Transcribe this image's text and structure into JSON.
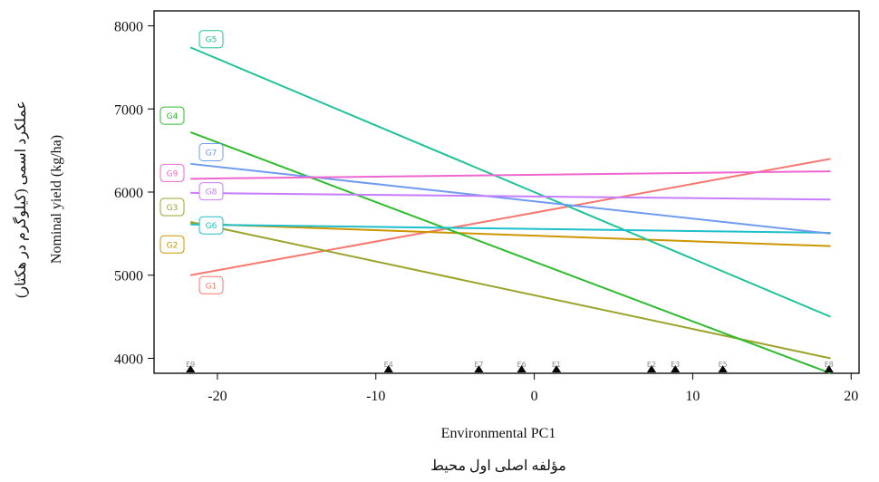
{
  "chart_data": {
    "type": "line",
    "title": "",
    "xlabel": "Environmental PC1",
    "xlabel_secondary": "مؤلفه اصلی اول محیط",
    "ylabel": "Nominal yield (kg/ha)",
    "ylabel_secondary": "عملکرد اسمی (کیلوگرم در هکتار)",
    "xlim": [
      -24,
      20.5
    ],
    "ylim": [
      3820,
      8180
    ],
    "xticks": [
      -20,
      -10,
      0,
      10,
      20
    ],
    "xtick_labels": [
      "-20",
      "-10",
      "0",
      "10",
      "20"
    ],
    "yticks": [
      4000,
      5000,
      6000,
      7000,
      8000
    ],
    "ytick_labels": [
      "4000",
      "5000",
      "6000",
      "7000",
      "8000"
    ],
    "grid": false,
    "legend": "none",
    "series": [
      {
        "name": "G1",
        "color": "#f8766d",
        "x": [
          -21.7,
          18.7
        ],
        "y": [
          5000,
          6400
        ]
      },
      {
        "name": "G2",
        "color": "#cd9600",
        "x": [
          -21.7,
          18.7
        ],
        "y": [
          5620,
          5350
        ]
      },
      {
        "name": "G3",
        "color": "#9ca32a",
        "x": [
          -21.7,
          18.7
        ],
        "y": [
          5640,
          4000
        ]
      },
      {
        "name": "G4",
        "color": "#2fbb2f",
        "x": [
          -21.7,
          18.7
        ],
        "y": [
          6720,
          3820
        ]
      },
      {
        "name": "G5",
        "color": "#1fc29a",
        "x": [
          -21.7,
          18.7
        ],
        "y": [
          7740,
          4500
        ]
      },
      {
        "name": "G6",
        "color": "#1cbfcb",
        "x": [
          -21.7,
          18.7
        ],
        "y": [
          5610,
          5510
        ]
      },
      {
        "name": "G7",
        "color": "#6f9bf0",
        "x": [
          -21.7,
          18.7
        ],
        "y": [
          6340,
          5500
        ]
      },
      {
        "name": "G8",
        "color": "#c77cff",
        "x": [
          -21.7,
          18.7
        ],
        "y": [
          5990,
          5910
        ]
      },
      {
        "name": "G9",
        "color": "#f066d0",
        "x": [
          -21.7,
          18.7
        ],
        "y": [
          6160,
          6250
        ]
      }
    ],
    "genotype_labels": [
      {
        "name": "G5",
        "color": "#1fc29a",
        "y": 7840,
        "side": "line"
      },
      {
        "name": "G4",
        "color": "#2fbb2f",
        "y": 6920,
        "side": "left"
      },
      {
        "name": "G7",
        "color": "#6f9bf0",
        "y": 6480,
        "side": "line"
      },
      {
        "name": "G9",
        "color": "#f066d0",
        "y": 6230,
        "side": "left"
      },
      {
        "name": "G8",
        "color": "#c77cff",
        "y": 6010,
        "side": "line"
      },
      {
        "name": "G3",
        "color": "#9ca32a",
        "y": 5820,
        "side": "left"
      },
      {
        "name": "G6",
        "color": "#1cbfcb",
        "y": 5600,
        "side": "line"
      },
      {
        "name": "G2",
        "color": "#cd9600",
        "y": 5370,
        "side": "left"
      },
      {
        "name": "G1",
        "color": "#f8766d",
        "y": 4880,
        "side": "line"
      }
    ],
    "environments": [
      {
        "name": "E9",
        "x": -21.7
      },
      {
        "name": "E4",
        "x": -9.2
      },
      {
        "name": "E7",
        "x": -3.5
      },
      {
        "name": "E6",
        "x": -0.8
      },
      {
        "name": "E1",
        "x": 1.4
      },
      {
        "name": "E2",
        "x": 7.4
      },
      {
        "name": "E3",
        "x": 8.9
      },
      {
        "name": "E5",
        "x": 11.9
      },
      {
        "name": "E8",
        "x": 18.6
      }
    ]
  }
}
